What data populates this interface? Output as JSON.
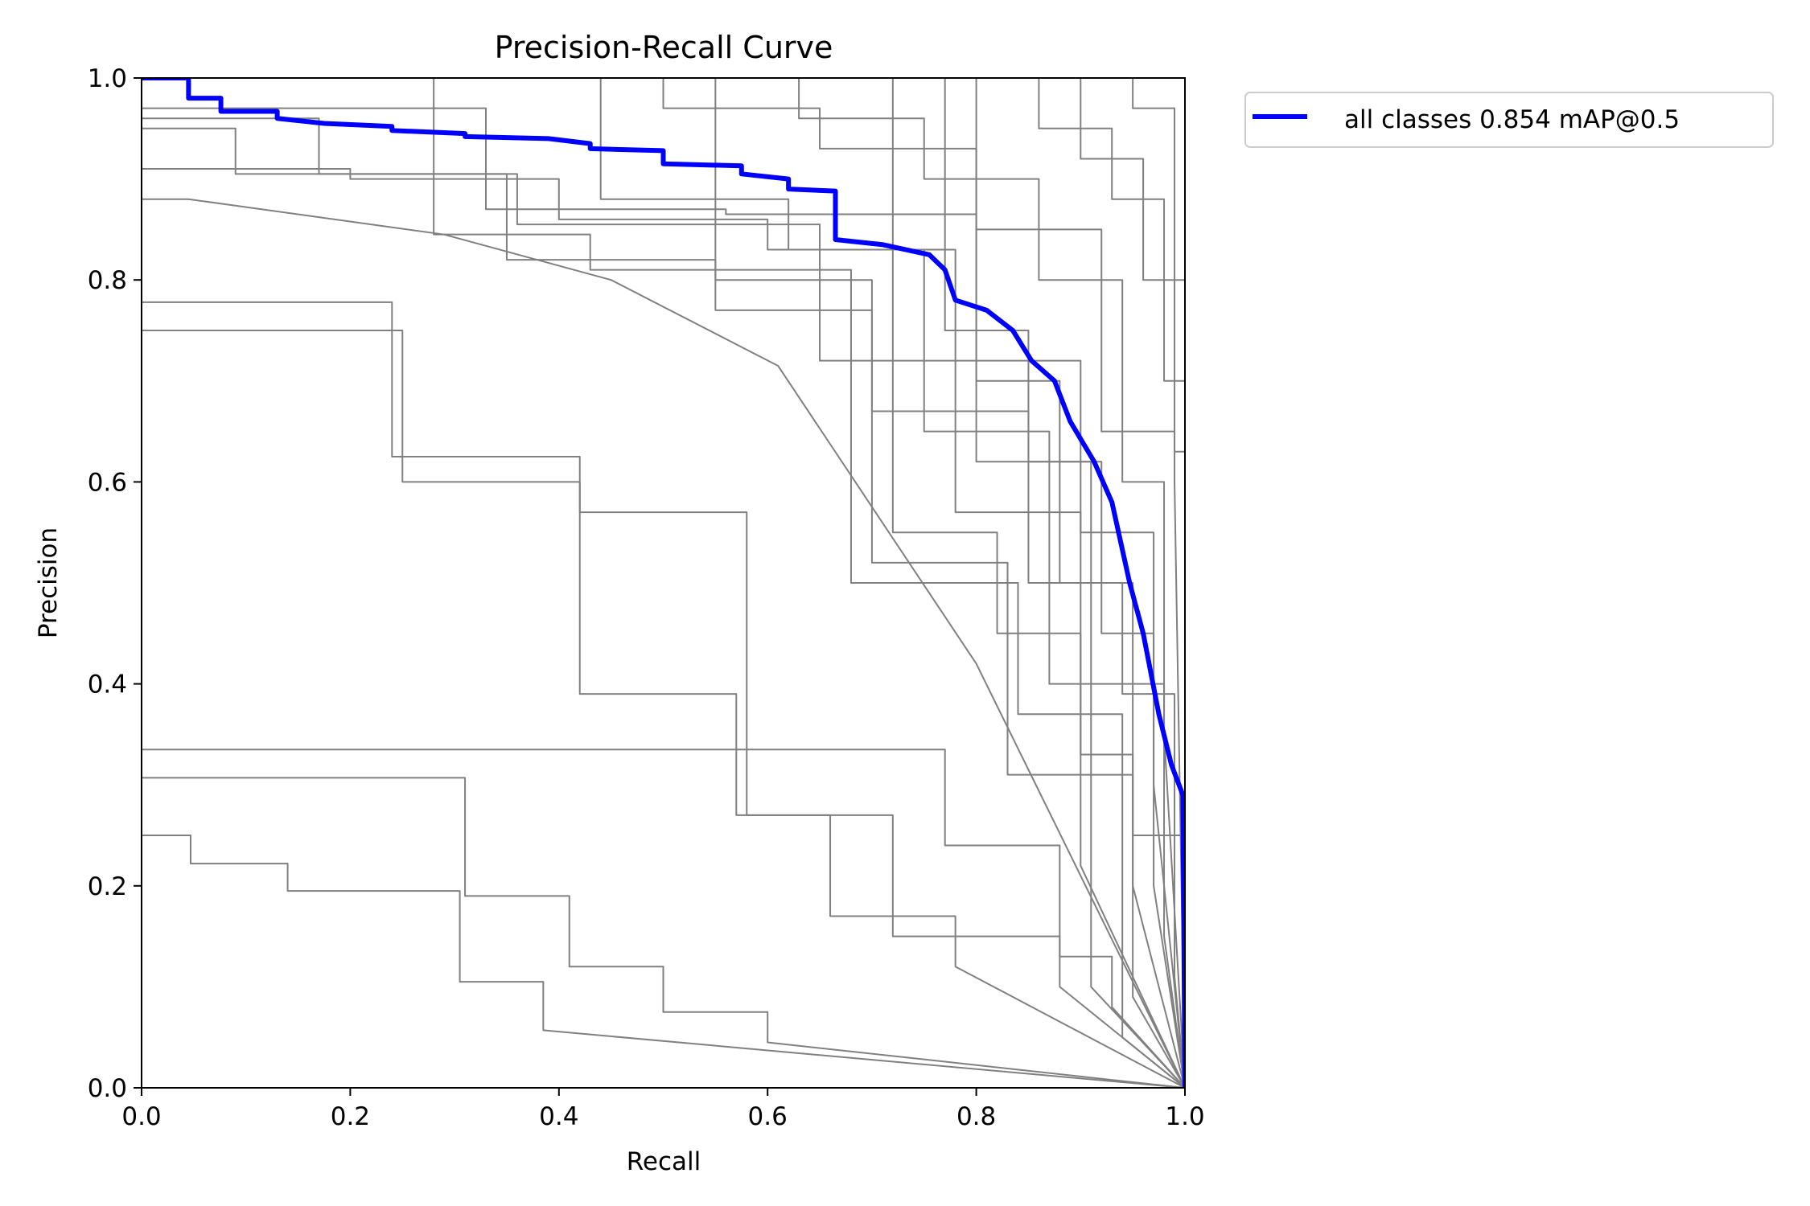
{
  "chart_data": {
    "type": "line",
    "title": "Precision-Recall Curve",
    "xlabel": "Recall",
    "ylabel": "Precision",
    "xlim": [
      0,
      1
    ],
    "ylim": [
      0,
      1
    ],
    "xticks": [
      "0.0",
      "0.2",
      "0.4",
      "0.6",
      "0.8",
      "1.0"
    ],
    "yticks": [
      "0.0",
      "0.2",
      "0.4",
      "0.6",
      "0.8",
      "1.0"
    ],
    "grid": false,
    "legend_position": "outside upper right",
    "legend": [
      "all classes 0.854 mAP@0.5"
    ],
    "series": [
      {
        "name": "all classes 0.854 mAP@0.5",
        "color": "#0000ff",
        "linewidth": 6,
        "x": [
          0,
          0.045,
          0.045,
          0.076,
          0.076,
          0.13,
          0.13,
          0.175,
          0.24,
          0.24,
          0.31,
          0.31,
          0.39,
          0.43,
          0.43,
          0.5,
          0.5,
          0.575,
          0.575,
          0.62,
          0.62,
          0.665,
          0.665,
          0.71,
          0.755,
          0.77,
          0.78,
          0.81,
          0.835,
          0.853,
          0.875,
          0.89,
          0.913,
          0.93,
          0.947,
          0.96,
          0.975,
          0.987,
          0.998,
          1.0
        ],
        "y": [
          1.0,
          1.0,
          0.98,
          0.98,
          0.967,
          0.967,
          0.96,
          0.955,
          0.952,
          0.948,
          0.945,
          0.942,
          0.94,
          0.935,
          0.93,
          0.928,
          0.915,
          0.913,
          0.905,
          0.9,
          0.89,
          0.888,
          0.84,
          0.835,
          0.825,
          0.81,
          0.78,
          0.77,
          0.75,
          0.72,
          0.7,
          0.66,
          0.62,
          0.58,
          0.5,
          0.45,
          0.37,
          0.32,
          0.29,
          0.0
        ]
      },
      {
        "name": "class curve",
        "color": "#808080",
        "x": [
          0,
          0.047,
          0.047,
          0.14,
          0.14,
          0.305,
          0.305,
          0.385,
          0.385,
          1.0
        ],
        "y": [
          0.25,
          0.25,
          0.222,
          0.222,
          0.195,
          0.195,
          0.105,
          0.105,
          0.057,
          0.0
        ]
      },
      {
        "name": "class curve",
        "color": "#808080",
        "x": [
          0,
          0.076,
          0.076,
          0.31,
          0.31,
          0.41,
          0.41,
          0.5,
          0.5,
          0.6,
          0.6,
          1.0
        ],
        "y": [
          0.307,
          0.307,
          0.307,
          0.307,
          0.19,
          0.19,
          0.12,
          0.12,
          0.075,
          0.075,
          0.045,
          0.0
        ]
      },
      {
        "name": "class curve",
        "color": "#808080",
        "x": [
          0,
          0.24,
          0.24,
          0.42,
          0.42,
          0.57,
          0.57,
          0.66,
          0.66,
          0.78,
          0.78,
          1.0
        ],
        "y": [
          0.778,
          0.778,
          0.625,
          0.625,
          0.39,
          0.39,
          0.27,
          0.27,
          0.17,
          0.17,
          0.12,
          0.0
        ]
      },
      {
        "name": "class curve",
        "color": "#808080",
        "x": [
          0,
          0.17,
          0.17,
          0.25,
          0.25,
          0.42,
          0.42,
          0.58,
          0.58,
          0.72,
          0.72,
          0.88,
          0.88,
          1.0
        ],
        "y": [
          0.75,
          0.75,
          0.75,
          0.75,
          0.6,
          0.6,
          0.57,
          0.57,
          0.27,
          0.27,
          0.15,
          0.15,
          0.1,
          0.0
        ]
      },
      {
        "name": "class curve",
        "color": "#808080",
        "x": [
          0,
          0.045,
          0.045,
          0.29,
          0.29,
          0.45,
          0.45,
          0.61,
          0.61,
          0.8,
          0.8,
          1.0
        ],
        "y": [
          0.88,
          0.88,
          0.88,
          0.845,
          0.845,
          0.8,
          0.8,
          0.715,
          0.715,
          0.42,
          0.42,
          0.0
        ]
      },
      {
        "name": "class curve",
        "color": "#808080",
        "x": [
          0,
          0.09,
          0.09,
          0.35,
          0.35,
          0.55,
          0.55,
          0.7,
          0.7,
          0.85,
          0.85,
          0.95,
          0.95,
          1.0
        ],
        "y": [
          0.95,
          0.95,
          0.905,
          0.905,
          0.82,
          0.82,
          0.8,
          0.8,
          0.67,
          0.67,
          0.5,
          0.5,
          0.2,
          0.0
        ]
      },
      {
        "name": "class curve",
        "color": "#808080",
        "x": [
          0,
          0.2,
          0.2,
          0.4,
          0.4,
          0.6,
          0.6,
          0.75,
          0.75,
          0.9,
          0.9,
          0.97,
          0.97,
          1.0
        ],
        "y": [
          0.91,
          0.91,
          0.9,
          0.9,
          0.86,
          0.86,
          0.83,
          0.83,
          0.72,
          0.72,
          0.55,
          0.55,
          0.3,
          0.0
        ]
      },
      {
        "name": "class curve",
        "color": "#808080",
        "x": [
          0,
          0.5,
          0.5,
          0.65,
          0.65,
          0.8,
          0.8,
          0.92,
          0.92,
          0.99,
          0.99,
          1.0
        ],
        "y": [
          1.0,
          1.0,
          0.97,
          0.97,
          0.93,
          0.93,
          0.85,
          0.85,
          0.65,
          0.65,
          0.6,
          0.0
        ]
      },
      {
        "name": "class curve",
        "color": "#808080",
        "x": [
          0,
          0.63,
          0.63,
          0.75,
          0.75,
          0.86,
          0.86,
          0.94,
          0.94,
          0.98,
          0.98,
          1.0
        ],
        "y": [
          1.0,
          1.0,
          0.96,
          0.96,
          0.9,
          0.9,
          0.8,
          0.8,
          0.6,
          0.6,
          0.35,
          0.0
        ]
      },
      {
        "name": "class curve",
        "color": "#808080",
        "x": [
          0,
          0.72,
          0.72,
          0.82,
          0.82,
          0.9,
          0.9,
          0.95,
          0.95,
          1.0,
          1.0
        ],
        "y": [
          1.0,
          1.0,
          0.55,
          0.55,
          0.45,
          0.45,
          0.33,
          0.33,
          0.25,
          0.25,
          0.0
        ]
      },
      {
        "name": "class curve",
        "color": "#808080",
        "x": [
          0,
          0.66,
          0.66,
          0.77,
          0.77,
          0.88,
          0.88,
          0.93,
          0.93,
          1.0
        ],
        "y": [
          0.335,
          0.335,
          0.335,
          0.335,
          0.24,
          0.24,
          0.13,
          0.13,
          0.08,
          0.0
        ]
      },
      {
        "name": "class curve",
        "color": "#808080",
        "x": [
          0,
          0.77,
          0.77,
          0.85,
          0.85,
          0.92,
          0.92,
          0.97,
          0.97,
          1.0
        ],
        "y": [
          1.0,
          1.0,
          0.75,
          0.75,
          0.62,
          0.62,
          0.45,
          0.45,
          0.2,
          0.0
        ]
      },
      {
        "name": "class curve",
        "color": "#808080",
        "x": [
          0,
          0.86,
          0.86,
          0.93,
          0.93,
          0.98,
          0.98,
          1.0,
          1.0
        ],
        "y": [
          1.0,
          1.0,
          0.95,
          0.95,
          0.88,
          0.88,
          0.7,
          0.7,
          0.0
        ]
      },
      {
        "name": "class curve",
        "color": "#808080",
        "x": [
          0,
          0.9,
          0.9,
          0.96,
          0.96,
          1.0,
          1.0
        ],
        "y": [
          1.0,
          1.0,
          0.92,
          0.92,
          0.8,
          0.8,
          0.0
        ]
      },
      {
        "name": "class curve",
        "color": "#808080",
        "x": [
          0,
          0.33,
          0.33,
          0.56,
          0.56,
          0.8,
          0.8,
          0.91,
          0.91,
          1.0
        ],
        "y": [
          0.97,
          0.97,
          0.87,
          0.87,
          0.865,
          0.865,
          0.62,
          0.62,
          0.1,
          0.0
        ]
      },
      {
        "name": "class curve",
        "color": "#808080",
        "x": [
          0,
          0.17,
          0.17,
          0.36,
          0.36,
          0.65,
          0.65,
          0.75,
          0.75,
          0.87,
          0.87,
          0.98,
          0.98,
          1.0
        ],
        "y": [
          0.96,
          0.96,
          0.905,
          0.905,
          0.855,
          0.855,
          0.72,
          0.72,
          0.65,
          0.65,
          0.4,
          0.4,
          0.15,
          0.0
        ]
      },
      {
        "name": "class curve",
        "color": "#808080",
        "x": [
          0,
          0.28,
          0.28,
          0.43,
          0.43,
          0.68,
          0.68,
          0.84,
          0.84,
          0.94,
          0.94,
          1.0
        ],
        "y": [
          1.0,
          1.0,
          0.845,
          0.845,
          0.81,
          0.81,
          0.5,
          0.5,
          0.37,
          0.37,
          0.05,
          0.0
        ]
      },
      {
        "name": "class curve",
        "color": "#808080",
        "x": [
          0,
          0.55,
          0.55,
          0.7,
          0.7,
          0.83,
          0.83,
          0.95,
          0.95,
          1.0
        ],
        "y": [
          1.0,
          1.0,
          0.77,
          0.77,
          0.52,
          0.52,
          0.31,
          0.31,
          0.09,
          0.0
        ]
      },
      {
        "name": "class curve",
        "color": "#808080",
        "x": [
          0,
          0.44,
          0.44,
          0.62,
          0.62,
          0.78,
          0.78,
          0.9,
          0.9,
          1.0
        ],
        "y": [
          1.0,
          1.0,
          0.88,
          0.88,
          0.83,
          0.83,
          0.57,
          0.57,
          0.22,
          0.0
        ]
      },
      {
        "name": "class curve",
        "color": "#808080",
        "x": [
          0,
          0.8,
          0.8,
          0.88,
          0.88,
          0.94,
          0.94,
          0.99,
          0.99,
          1.0
        ],
        "y": [
          1.0,
          1.0,
          0.7,
          0.7,
          0.5,
          0.5,
          0.39,
          0.39,
          0.11,
          0.0
        ]
      },
      {
        "name": "class curve",
        "color": "#808080",
        "x": [
          0,
          0.95,
          0.95,
          0.99,
          0.99,
          1.0,
          1.0
        ],
        "y": [
          1.0,
          1.0,
          0.97,
          0.97,
          0.63,
          0.63,
          0.0
        ]
      }
    ]
  }
}
